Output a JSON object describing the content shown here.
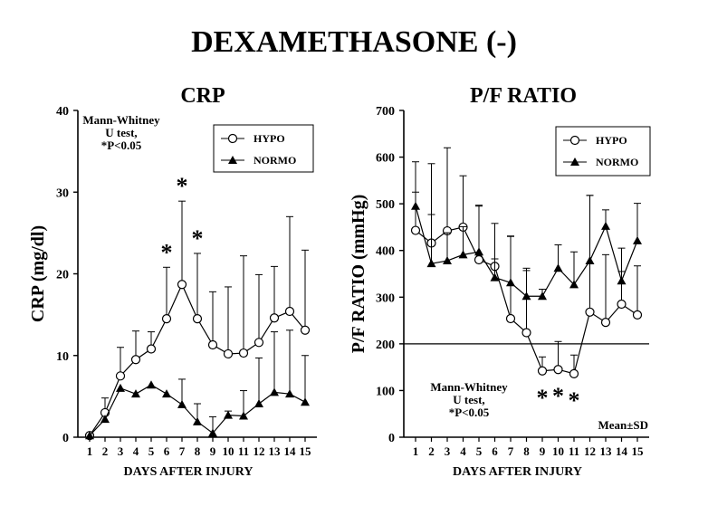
{
  "figure": {
    "title": "DEXAMETHASONE (-)"
  },
  "chart_data": [
    {
      "type": "line",
      "title": "CRP",
      "xlabel": "DAYS AFTER INJURY",
      "ylabel": "CRP (mg/dl)",
      "x": [
        1,
        2,
        3,
        4,
        5,
        6,
        7,
        8,
        9,
        10,
        11,
        12,
        13,
        14,
        15
      ],
      "xticks": [
        "1",
        "2",
        "3",
        "4",
        "5",
        "6",
        "7",
        "8",
        "9",
        "10",
        "11",
        "12",
        "13",
        "14",
        "15"
      ],
      "ylim": [
        0,
        40
      ],
      "yticks": [
        0,
        10,
        20,
        30,
        40
      ],
      "legend": {
        "position": "top-right"
      },
      "note": [
        "Mann-Whitney",
        "U test,",
        "*P<0.05"
      ],
      "significance_days": [
        6,
        7,
        8
      ],
      "series": [
        {
          "name": "HYPO",
          "marker": "open-circle",
          "values": [
            0.2,
            3.0,
            7.5,
            9.5,
            10.8,
            14.5,
            18.7,
            14.5,
            11.3,
            10.2,
            10.3,
            11.6,
            14.6,
            15.4,
            13.1
          ],
          "sd": [
            0.2,
            1.8,
            3.5,
            3.5,
            2.1,
            6.3,
            10.2,
            8.0,
            6.5,
            8.2,
            11.9,
            8.3,
            6.3,
            11.6,
            9.8
          ]
        },
        {
          "name": "NORMO",
          "marker": "filled-triangle",
          "values": [
            0.2,
            2.2,
            6.0,
            5.3,
            6.4,
            5.3,
            4.0,
            1.9,
            0.5,
            2.7,
            2.6,
            4.1,
            5.5,
            5.3,
            4.3
          ],
          "sd": [
            0,
            0,
            0,
            0,
            0,
            0,
            3.1,
            2.2,
            2.0,
            0.5,
            3.1,
            5.6,
            7.4,
            7.8,
            5.7
          ]
        }
      ]
    },
    {
      "type": "line",
      "title": "P/F RATIO",
      "xlabel": "DAYS AFTER INJURY",
      "ylabel": "P/F RATIO (mmHg)",
      "x": [
        1,
        2,
        3,
        4,
        5,
        6,
        7,
        8,
        9,
        10,
        11,
        12,
        13,
        14,
        15
      ],
      "xticks": [
        "1",
        "2",
        "3",
        "4",
        "5",
        "6",
        "7",
        "8",
        "9",
        "10",
        "11",
        "12",
        "13",
        "14",
        "15"
      ],
      "ylim": [
        0,
        700
      ],
      "yticks": [
        0,
        100,
        200,
        300,
        400,
        500,
        600,
        700
      ],
      "reference_line": 200,
      "legend": {
        "position": "top-right"
      },
      "note": [
        "Mann-Whitney",
        "U test,",
        "*P<0.05"
      ],
      "corner_label": "Mean±SD",
      "significance_days": [
        9,
        10,
        11
      ],
      "series": [
        {
          "name": "HYPO",
          "marker": "open-circle",
          "values": [
            443,
            416,
            442,
            450,
            380,
            366,
            254,
            224,
            142,
            145,
            136,
            268,
            246,
            285,
            262
          ],
          "sd": [
            147,
            170,
            178,
            110,
            115,
            92,
            176,
            133,
            30,
            60,
            40,
            250,
            145,
            70,
            105
          ]
        },
        {
          "name": "NORMO",
          "marker": "filled-triangle",
          "values": [
            495,
            372,
            378,
            391,
            397,
            342,
            331,
            302,
            302,
            362,
            327,
            378,
            452,
            335,
            421
          ],
          "sd": [
            30,
            105,
            60,
            60,
            100,
            40,
            100,
            60,
            15,
            50,
            70,
            140,
            35,
            70,
            80
          ]
        }
      ]
    }
  ]
}
